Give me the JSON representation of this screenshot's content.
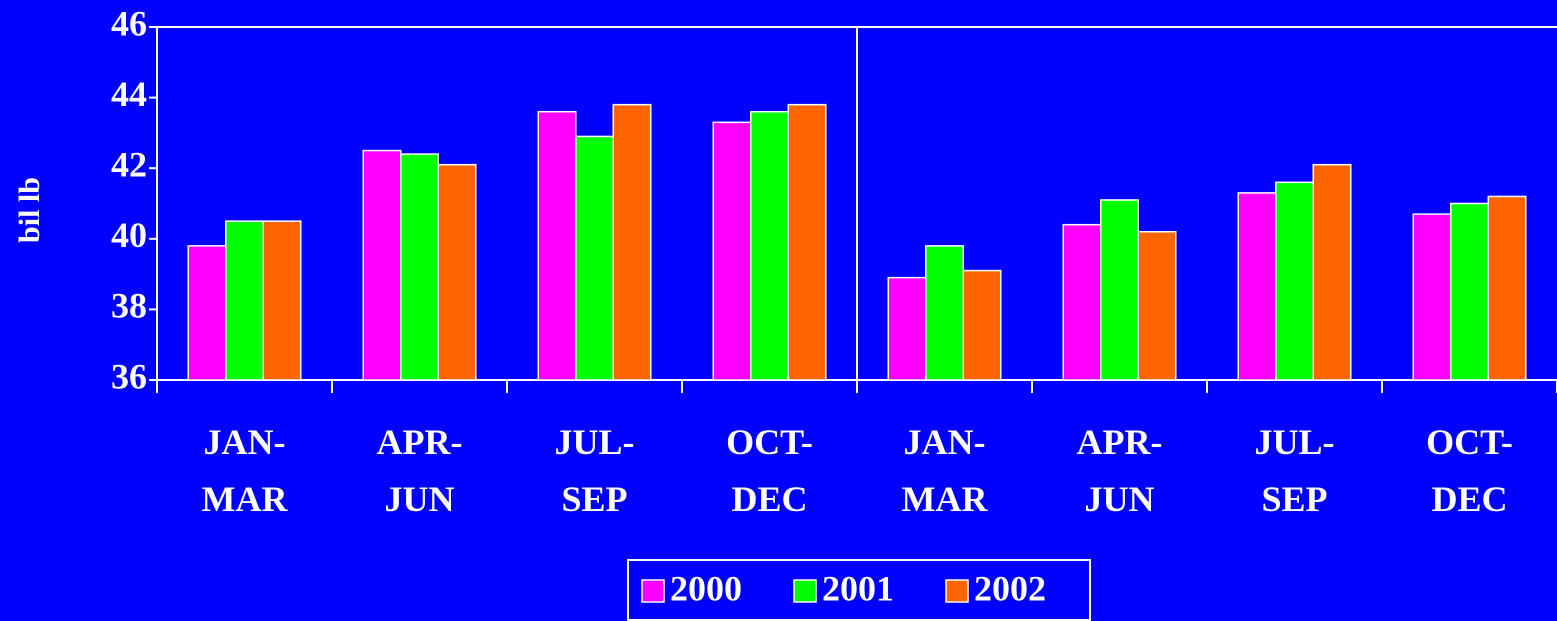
{
  "chart_data": {
    "type": "bar",
    "y_label": "bil lb",
    "categories": [
      "JAN-\nMAR",
      "APR-\nJUN",
      "JUL-\nSEP",
      "OCT-\nDEC",
      "JAN-\nMAR",
      "APR-\nJUN",
      "JUL-\nSEP",
      "OCT-\nDEC"
    ],
    "series": [
      {
        "name": "2000",
        "color": "#ff00ff",
        "values": [
          39.8,
          42.5,
          43.6,
          43.3,
          38.9,
          40.4,
          41.3,
          40.7
        ]
      },
      {
        "name": "2001",
        "color": "#00ff00",
        "values": [
          40.5,
          42.4,
          42.9,
          43.6,
          39.8,
          41.1,
          41.6,
          41.0
        ]
      },
      {
        "name": "2002",
        "color": "#ff6600",
        "values": [
          40.5,
          42.1,
          43.8,
          43.8,
          39.1,
          40.2,
          42.1,
          41.2
        ]
      }
    ],
    "ylim": [
      36,
      46
    ],
    "yticks": [
      36,
      38,
      40,
      42,
      44,
      46
    ],
    "grid": false,
    "legend": "bottom"
  }
}
